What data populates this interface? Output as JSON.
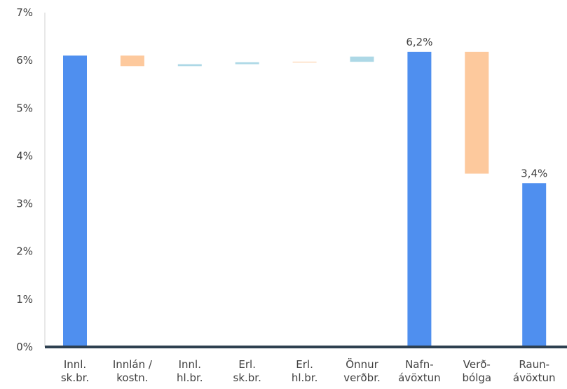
{
  "chart_data": {
    "type": "bar",
    "subtype": "waterfall",
    "title": "",
    "xlabel": "",
    "ylabel": "",
    "ylim": [
      0,
      7
    ],
    "y_tick_format": "percent",
    "y_ticks": [
      "0%",
      "1%",
      "2%",
      "3%",
      "4%",
      "5%",
      "6%",
      "7%"
    ],
    "categories": [
      [
        "Innl.",
        "sk.br."
      ],
      [
        "Innlán /",
        "kostn."
      ],
      [
        "Innl.",
        "hl.br."
      ],
      [
        "Erl.",
        "sk.br."
      ],
      [
        "Erl.",
        "hl.br."
      ],
      [
        "Önnur",
        "verðbr."
      ],
      [
        "Nafn-",
        "ávöxtun"
      ],
      [
        "Verð-",
        "bólga"
      ],
      [
        "Raun-",
        "ávöxtun"
      ]
    ],
    "bars": [
      {
        "base": 0,
        "top": 6.1,
        "kind": "total"
      },
      {
        "base": 5.88,
        "top": 6.1,
        "kind": "decrease"
      },
      {
        "base": 5.88,
        "top": 5.92,
        "kind": "change"
      },
      {
        "base": 5.92,
        "top": 5.96,
        "kind": "change"
      },
      {
        "base": 5.96,
        "top": 5.97,
        "kind": "decrease"
      },
      {
        "base": 5.97,
        "top": 6.08,
        "kind": "change"
      },
      {
        "base": 0,
        "top": 6.18,
        "kind": "total"
      },
      {
        "base": 3.63,
        "top": 6.18,
        "kind": "decrease"
      },
      {
        "base": 0,
        "top": 3.43,
        "kind": "total"
      }
    ],
    "data_labels": [
      {
        "index": 6,
        "text": "6,2%"
      },
      {
        "index": 8,
        "text": "3,4%"
      }
    ],
    "colors": {
      "total": "#4f8fef",
      "decrease": "#fdc99d",
      "change": "#add8e6",
      "axis": "#2e4050",
      "text": "#404040"
    },
    "grid": false,
    "legend": "none"
  }
}
